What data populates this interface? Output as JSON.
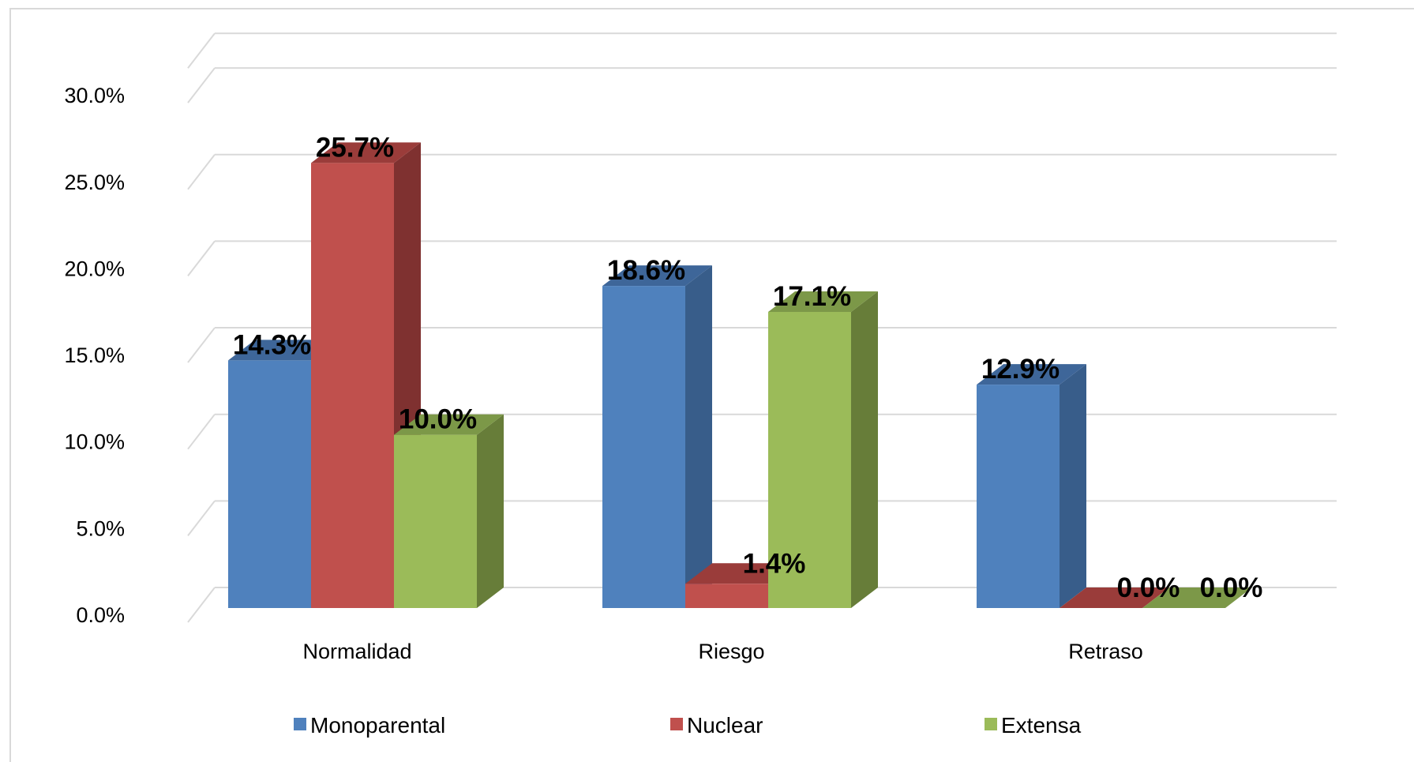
{
  "chart_data": {
    "type": "bar",
    "categories": [
      "Normalidad",
      "Riesgo",
      "Retraso"
    ],
    "series": [
      {
        "name": "Monoparental",
        "values": [
          14.3,
          18.6,
          12.9
        ],
        "labels": [
          "14.3%",
          "18.6%",
          "12.9%"
        ],
        "color": "#4F81BD",
        "side": "#385D8A",
        "top": "#3E6699"
      },
      {
        "name": "Nuclear",
        "values": [
          25.7,
          1.4,
          0.0
        ],
        "labels": [
          "25.7%",
          "1.4%",
          "0.0%"
        ],
        "color": "#C0504D",
        "side": "#7F3130",
        "top": "#9A3C3A"
      },
      {
        "name": "Extensa",
        "values": [
          10.0,
          17.1,
          0.0
        ],
        "labels": [
          "10.0%",
          "17.1%",
          "0.0%"
        ],
        "color": "#9BBB59",
        "side": "#677D39",
        "top": "#7C9848"
      }
    ],
    "yticks": [
      "0.0%",
      "5.0%",
      "10.0%",
      "15.0%",
      "20.0%",
      "25.0%",
      "30.0%"
    ],
    "ylim": [
      0,
      32
    ],
    "grid": true,
    "legend_position": "bottom",
    "projection": "3d"
  }
}
